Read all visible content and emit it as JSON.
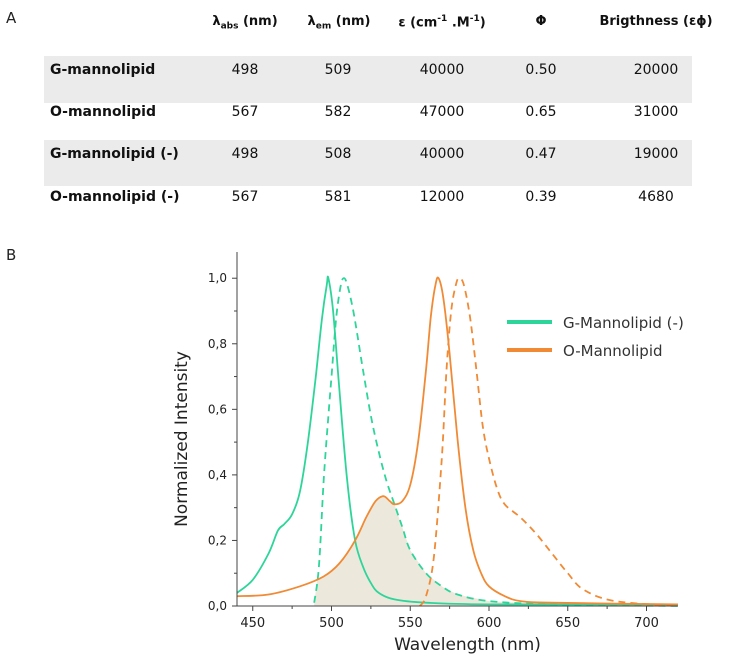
{
  "panels": {
    "a": "A",
    "b": "B"
  },
  "table": {
    "headers": [
      "",
      "λabs (nm)",
      "λem (nm)",
      "ε (cm-1 .M-1)",
      "Φ",
      "Brigthness (εϕ)"
    ],
    "header_parts": {
      "abs_main": "λ",
      "abs_sub": "abs",
      "abs_unit": " (nm)",
      "em_main": "λ",
      "em_sub": "em",
      "em_unit": " (nm)",
      "eps_main": "ε (cm",
      "eps_sup1": "-1",
      "eps_mid": " .M",
      "eps_sup2": "-1",
      "eps_end": ")",
      "phi": "Φ",
      "brightness": "Brigthness (εϕ)"
    },
    "rows": [
      {
        "name": "G-mannolipid",
        "abs": "498",
        "em": "509",
        "eps": "40000",
        "phi": "0.50",
        "brightness": "20000",
        "shaded": true
      },
      {
        "name": "O-mannolipid",
        "abs": "567",
        "em": "582",
        "eps": "47000",
        "phi": "0.65",
        "brightness": "31000",
        "shaded": false
      },
      {
        "name": "G-mannolipid (-)",
        "abs": "498",
        "em": "508",
        "eps": "40000",
        "phi": "0.47",
        "brightness": "19000",
        "shaded": true
      },
      {
        "name": "O-mannolipid (-)",
        "abs": "567",
        "em": "581",
        "eps": "12000",
        "phi": "0.39",
        "brightness": "4680",
        "shaded": false
      }
    ]
  },
  "chart_data": {
    "type": "line",
    "title": "",
    "xlabel": "Wavelength (nm)",
    "ylabel": "Normalized Intensity",
    "xlim": [
      440,
      720
    ],
    "ylim": [
      0,
      1.08
    ],
    "xticks": [
      450,
      500,
      550,
      600,
      650,
      700
    ],
    "yticks": [
      0.0,
      0.2,
      0.4,
      0.6,
      0.8,
      1.0
    ],
    "ytick_labels": [
      "0,0",
      "0,2",
      "0,4",
      "0,6",
      "0,8",
      "1,0"
    ],
    "grid": false,
    "legend_position": "top-right",
    "legend": [
      {
        "label": "G-Mannolipid (-)",
        "color": "#2ed59a"
      },
      {
        "label": "O-Mannolipid",
        "color": "#f08a35"
      }
    ],
    "overlap_fill_color": "#ede8dc",
    "series": [
      {
        "name": "G-Mannolipid (-)",
        "kind": "absorption",
        "style": "solid",
        "color": "#2ed59a",
        "x": [
          440,
          450,
          460,
          466,
          470,
          475,
          480,
          485,
          490,
          494,
          497,
          498,
          501,
          505,
          510,
          515,
          520,
          525,
          530,
          540,
          560,
          600,
          720
        ],
        "y": [
          0.04,
          0.08,
          0.16,
          0.23,
          0.25,
          0.28,
          0.35,
          0.5,
          0.7,
          0.88,
          0.98,
          1.0,
          0.9,
          0.66,
          0.38,
          0.2,
          0.12,
          0.07,
          0.04,
          0.02,
          0.01,
          0.005,
          0.005
        ]
      },
      {
        "name": "G-Mannolipid (-)",
        "kind": "emission",
        "style": "dashed",
        "color": "#2ed59a",
        "x": [
          489,
          492,
          495,
          498,
          500,
          503,
          506,
          508,
          510,
          513,
          516,
          520,
          525,
          530,
          535,
          540,
          545,
          550,
          560,
          570,
          580,
          600,
          640,
          720
        ],
        "y": [
          0.01,
          0.12,
          0.38,
          0.58,
          0.7,
          0.88,
          0.98,
          1.0,
          0.98,
          0.92,
          0.84,
          0.72,
          0.58,
          0.47,
          0.38,
          0.31,
          0.24,
          0.17,
          0.1,
          0.06,
          0.035,
          0.015,
          0.005,
          0.0
        ]
      },
      {
        "name": "O-Mannolipid",
        "kind": "absorption",
        "style": "solid",
        "color": "#f08a35",
        "x": [
          440,
          460,
          480,
          495,
          505,
          515,
          522,
          528,
          533,
          537,
          540,
          545,
          550,
          555,
          560,
          563,
          566,
          568,
          571,
          575,
          580,
          585,
          590,
          595,
          600,
          610,
          620,
          640,
          720
        ],
        "y": [
          0.03,
          0.035,
          0.06,
          0.09,
          0.13,
          0.2,
          0.27,
          0.32,
          0.335,
          0.32,
          0.31,
          0.32,
          0.37,
          0.5,
          0.72,
          0.88,
          0.98,
          1.0,
          0.94,
          0.77,
          0.51,
          0.3,
          0.17,
          0.1,
          0.06,
          0.03,
          0.015,
          0.01,
          0.005
        ]
      },
      {
        "name": "O-Mannolipid",
        "kind": "emission",
        "style": "dashed",
        "color": "#f08a35",
        "x": [
          556,
          560,
          565,
          570,
          573,
          576,
          579,
          581,
          584,
          588,
          592,
          596,
          600,
          605,
          610,
          620,
          630,
          640,
          650,
          660,
          680,
          720
        ],
        "y": [
          0.0,
          0.03,
          0.15,
          0.45,
          0.72,
          0.9,
          0.98,
          1.0,
          0.98,
          0.88,
          0.72,
          0.55,
          0.45,
          0.36,
          0.31,
          0.27,
          0.22,
          0.16,
          0.1,
          0.05,
          0.015,
          0.0
        ]
      }
    ]
  }
}
